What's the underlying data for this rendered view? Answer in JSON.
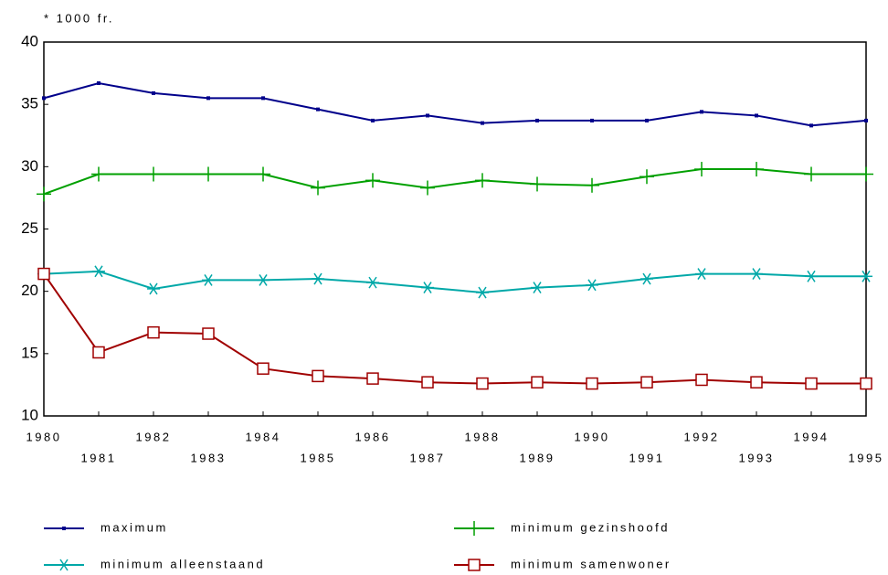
{
  "chart_data": {
    "type": "line",
    "ylabel": "* 1000 fr.",
    "categories": [
      "1980",
      "1981",
      "1982",
      "1983",
      "1984",
      "1985",
      "1986",
      "1987",
      "1988",
      "1989",
      "1990",
      "1991",
      "1992",
      "1993",
      "1994",
      "1995"
    ],
    "ylim": [
      10,
      40
    ],
    "yticks": [
      10,
      15,
      20,
      25,
      30,
      35,
      40
    ],
    "series": [
      {
        "name": "maximum",
        "color": "#00008b",
        "marker": "dot",
        "values": [
          35.5,
          36.7,
          35.9,
          35.5,
          35.5,
          34.6,
          33.7,
          34.1,
          33.5,
          33.7,
          33.7,
          33.7,
          34.4,
          34.1,
          33.3,
          33.7
        ]
      },
      {
        "name": "minimum gezinshoofd",
        "color": "#00a000",
        "marker": "plus",
        "values": [
          27.8,
          29.4,
          29.4,
          29.4,
          29.4,
          28.3,
          28.9,
          28.3,
          28.9,
          28.6,
          28.5,
          29.2,
          29.8,
          29.8,
          29.4,
          29.4
        ]
      },
      {
        "name": "minimum alleenstaand",
        "color": "#00a8a8",
        "marker": "asterisk",
        "values": [
          21.4,
          21.6,
          20.2,
          20.9,
          20.9,
          21.0,
          20.7,
          20.3,
          19.9,
          20.3,
          20.5,
          21.0,
          21.4,
          21.4,
          21.2,
          21.2
        ]
      },
      {
        "name": "minimum samenwoner",
        "color": "#a00000",
        "marker": "square",
        "values": [
          21.4,
          15.1,
          16.7,
          16.6,
          13.8,
          13.2,
          13.0,
          12.7,
          12.6,
          12.7,
          12.6,
          12.7,
          12.9,
          12.7,
          12.6,
          12.6
        ]
      }
    ]
  }
}
